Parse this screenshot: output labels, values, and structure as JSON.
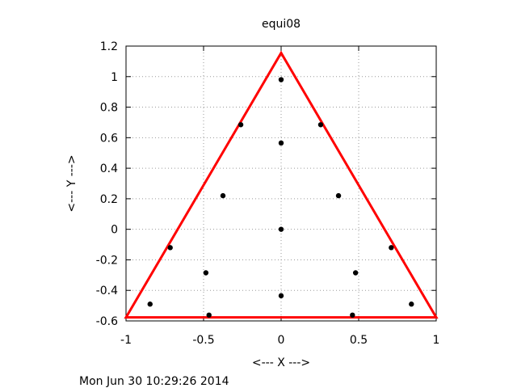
{
  "chart_data": {
    "type": "scatter",
    "title": "equi08",
    "xlabel": "<--- X --->",
    "ylabel": "<--- Y --->",
    "xlim": [
      -1,
      1
    ],
    "ylim": [
      -0.6,
      1.2
    ],
    "xticks": [
      -1,
      -0.5,
      0,
      0.5,
      1
    ],
    "xtick_labels": [
      "-1",
      "-0.5",
      "0",
      "0.5",
      "1"
    ],
    "yticks": [
      -0.6,
      -0.4,
      -0.2,
      0,
      0.2,
      0.4,
      0.6,
      0.8,
      1,
      1.2
    ],
    "ytick_labels": [
      "-0.6",
      "-0.4",
      "-0.2",
      "0",
      "0.2",
      "0.4",
      "0.6",
      "0.8",
      "1",
      "1.2"
    ],
    "grid": true,
    "triangle": {
      "color": "#ff0000",
      "vertices": [
        [
          -1,
          -0.577
        ],
        [
          1,
          -0.577
        ],
        [
          0,
          1.155
        ]
      ]
    },
    "series": [
      {
        "color": "#000000",
        "points": [
          [
            0,
            0.98
          ],
          [
            -0.26,
            0.685
          ],
          [
            0.255,
            0.685
          ],
          [
            0,
            0.565
          ],
          [
            -0.375,
            0.22
          ],
          [
            0.37,
            0.22
          ],
          [
            0,
            0
          ],
          [
            -0.715,
            -0.12
          ],
          [
            0.71,
            -0.12
          ],
          [
            -0.485,
            -0.285
          ],
          [
            0.48,
            -0.285
          ],
          [
            0,
            -0.435
          ],
          [
            -0.845,
            -0.49
          ],
          [
            0.84,
            -0.49
          ],
          [
            -0.465,
            -0.562
          ],
          [
            0.46,
            -0.562
          ]
        ]
      }
    ]
  },
  "footer": {
    "timestamp": "Mon Jun 30 10:29:26 2014"
  }
}
